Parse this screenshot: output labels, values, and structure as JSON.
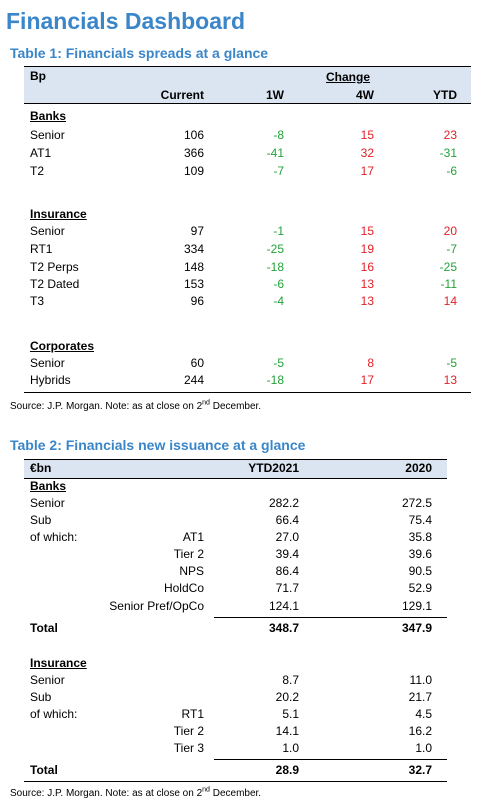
{
  "page_title": "Financials Dashboard",
  "table1": {
    "title": "Table 1: Financials spreads at a glance",
    "unit": "Bp",
    "change_label": "Change",
    "cols": [
      "Current",
      "1W",
      "4W",
      "YTD"
    ],
    "sections": [
      {
        "name": "Banks",
        "rows": [
          {
            "label": "Senior",
            "current": "106",
            "w1": "-8",
            "w4": "15",
            "ytd": "23"
          },
          {
            "label": "AT1",
            "current": "366",
            "w1": "-41",
            "w4": "32",
            "ytd": "-31"
          },
          {
            "label": "T2",
            "current": "109",
            "w1": "-7",
            "w4": "17",
            "ytd": "-6"
          }
        ]
      },
      {
        "name": "Insurance",
        "rows": [
          {
            "label": "Senior",
            "current": "97",
            "w1": "-1",
            "w4": "15",
            "ytd": "20"
          },
          {
            "label": "RT1",
            "current": "334",
            "w1": "-25",
            "w4": "19",
            "ytd": "-7"
          },
          {
            "label": "T2 Perps",
            "current": "148",
            "w1": "-18",
            "w4": "16",
            "ytd": "-25"
          },
          {
            "label": "T2 Dated",
            "current": "153",
            "w1": "-6",
            "w4": "13",
            "ytd": "-11"
          },
          {
            "label": "T3",
            "current": "96",
            "w1": "-4",
            "w4": "13",
            "ytd": "14"
          }
        ]
      },
      {
        "name": "Corporates",
        "rows": [
          {
            "label": "Senior",
            "current": "60",
            "w1": "-5",
            "w4": "8",
            "ytd": "-5"
          },
          {
            "label": "Hybrids",
            "current": "244",
            "w1": "-18",
            "w4": "17",
            "ytd": "13"
          }
        ]
      }
    ],
    "source": "Source: J.P. Morgan. Note: as at close on 2",
    "source_sup": "nd",
    "source_end": " December."
  },
  "table2": {
    "title": "Table 2: Financials new issuance at a glance",
    "unit": "€bn",
    "cols": [
      "YTD2021",
      "2020"
    ],
    "sections": [
      {
        "name": "Banks",
        "rows": [
          {
            "label": "Senior",
            "sub": "",
            "v1": "282.2",
            "v2": "272.5"
          },
          {
            "label": "Sub",
            "sub": "",
            "v1": "66.4",
            "v2": "75.4"
          },
          {
            "label": "of which:",
            "sub": "AT1",
            "v1": "27.0",
            "v2": "35.8"
          },
          {
            "label": "",
            "sub": "Tier 2",
            "v1": "39.4",
            "v2": "39.6"
          },
          {
            "label": "",
            "sub": "NPS",
            "v1": "86.4",
            "v2": "90.5"
          },
          {
            "label": "",
            "sub": "HoldCo",
            "v1": "71.7",
            "v2": "52.9"
          },
          {
            "label": "",
            "sub": "Senior Pref/OpCo",
            "v1": "124.1",
            "v2": "129.1"
          }
        ],
        "total": {
          "label": "Total",
          "v1": "348.7",
          "v2": "347.9"
        }
      },
      {
        "name": "Insurance",
        "rows": [
          {
            "label": "Senior",
            "sub": "",
            "v1": "8.7",
            "v2": "11.0"
          },
          {
            "label": "Sub",
            "sub": "",
            "v1": "20.2",
            "v2": "21.7"
          },
          {
            "label": "of which:",
            "sub": "RT1",
            "v1": "5.1",
            "v2": "4.5"
          },
          {
            "label": "",
            "sub": "Tier 2",
            "v1": "14.1",
            "v2": "16.2"
          },
          {
            "label": "",
            "sub": "Tier 3",
            "v1": "1.0",
            "v2": "1.0"
          }
        ],
        "total": {
          "label": "Total",
          "v1": "28.9",
          "v2": "32.7"
        }
      }
    ],
    "source": "Source: J.P. Morgan. Note: as at close on 2",
    "source_sup": "nd",
    "source_end": " December."
  },
  "colors": {
    "accent": "#3a86c8",
    "header_bg": "#dbe5f1",
    "positive": "#e21f26",
    "negative": "#23a23a"
  }
}
